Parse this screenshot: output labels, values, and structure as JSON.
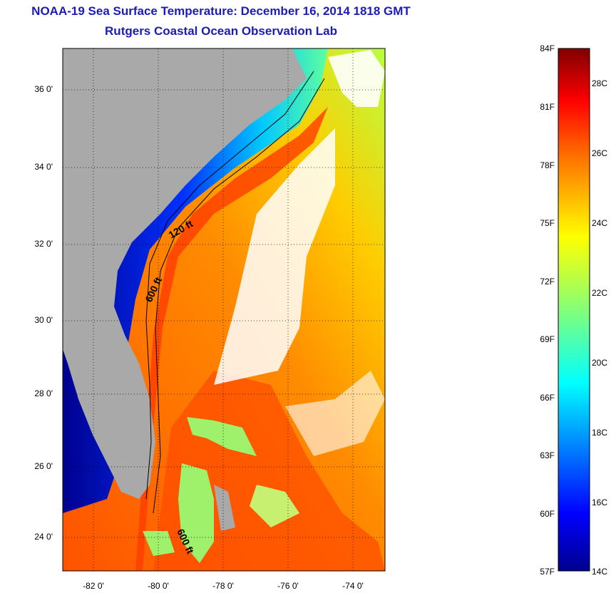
{
  "title": {
    "line1": "NOAA-19 Sea Surface Temperature:  December 16, 2014 1818 GMT",
    "line2": "Rutgers Coastal Ocean Observation Lab"
  },
  "map": {
    "lat_labels": [
      "36 0'",
      "34 0'",
      "32 0'",
      "30 0'",
      "28 0'",
      "26 0'",
      "24 0'"
    ],
    "lon_labels": [
      "-82 0'",
      "-80 0'",
      "-78 0'",
      "-76 0'",
      "-74 0'"
    ],
    "contour_labels": [
      "120 ft",
      "600 ft",
      "600 ft"
    ]
  },
  "colorbar": {
    "fahrenheit": [
      "84F",
      "81F",
      "78F",
      "75F",
      "72F",
      "69F",
      "66F",
      "63F",
      "60F",
      "57F"
    ],
    "celsius": [
      "28C",
      "26C",
      "24C",
      "22C",
      "20C",
      "18C",
      "16C",
      "14C"
    ]
  },
  "colors": {
    "title": "#1b1bb8",
    "land": "#a9a9a9",
    "cold": "#00008f",
    "warm": "#ff4a00"
  }
}
